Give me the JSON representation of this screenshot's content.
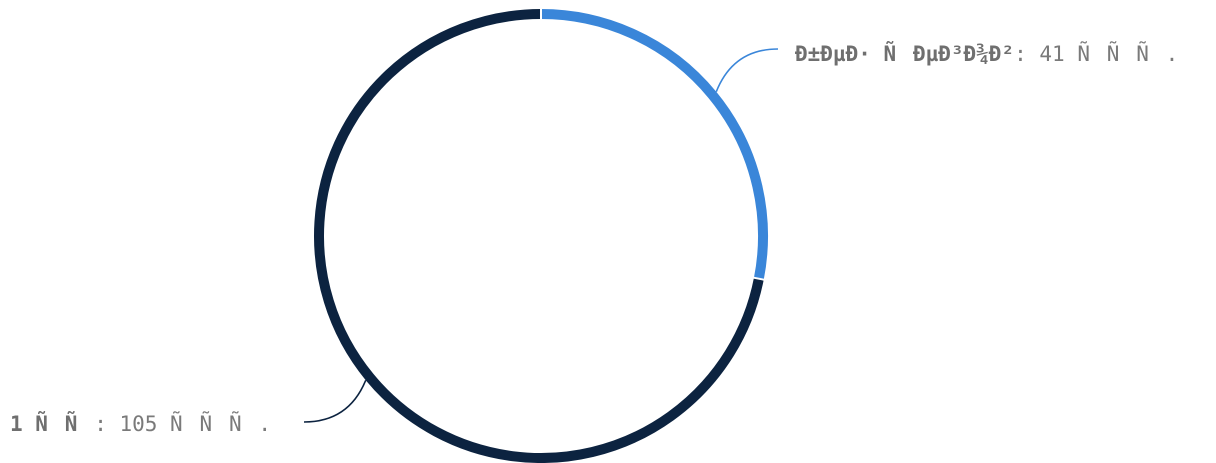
{
  "chart_data": {
    "type": "pie",
    "style": "donut-ring",
    "title": "",
    "series": [
      {
        "name": "Ð±ÐµÐ· ÑÐµÐ³Ð¾Ð²",
        "value": 41,
        "unit_label": "ÑÑÑ.",
        "display_value": "41 ÑÑÑ.",
        "color": "#3a86d9"
      },
      {
        "name": "1 ÑÑ",
        "value": 105,
        "unit_label": "ÑÑÑ.",
        "display_value": "105 ÑÑÑ.",
        "color": "#0c2340"
      }
    ],
    "separator": ": ",
    "start_angle_deg": 0,
    "clockwise": true,
    "legend": "none",
    "labels": "outside-with-leader-lines"
  }
}
